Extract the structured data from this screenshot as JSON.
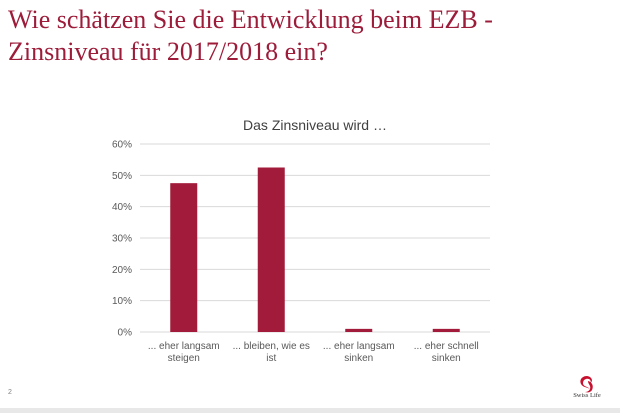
{
  "slide": {
    "title_line1": "Wie schätzen Sie die Entwicklung beim EZB -",
    "title_line2": "Zinsniveau für 2017/2018 ein?",
    "page_number": "2",
    "logo_text": "Swiss Life"
  },
  "colors": {
    "title": "#9c1c3a",
    "bar": "#a31b3a",
    "grid": "#d9d9d9",
    "axis_text": "#595959"
  },
  "chart_data": {
    "type": "bar",
    "title": "Das Zinsniveau wird …",
    "categories": [
      [
        "... eher langsam",
        "steigen"
      ],
      [
        "... bleiben, wie es",
        "ist"
      ],
      [
        "... eher langsam",
        "sinken"
      ],
      [
        "... eher schnell",
        "sinken"
      ]
    ],
    "values": [
      47.5,
      52.5,
      1,
      1
    ],
    "ylim": [
      0,
      60
    ],
    "yticks": [
      "0%",
      "10%",
      "20%",
      "30%",
      "40%",
      "50%",
      "60%"
    ],
    "xlabel": "",
    "ylabel": "",
    "grid": true
  }
}
